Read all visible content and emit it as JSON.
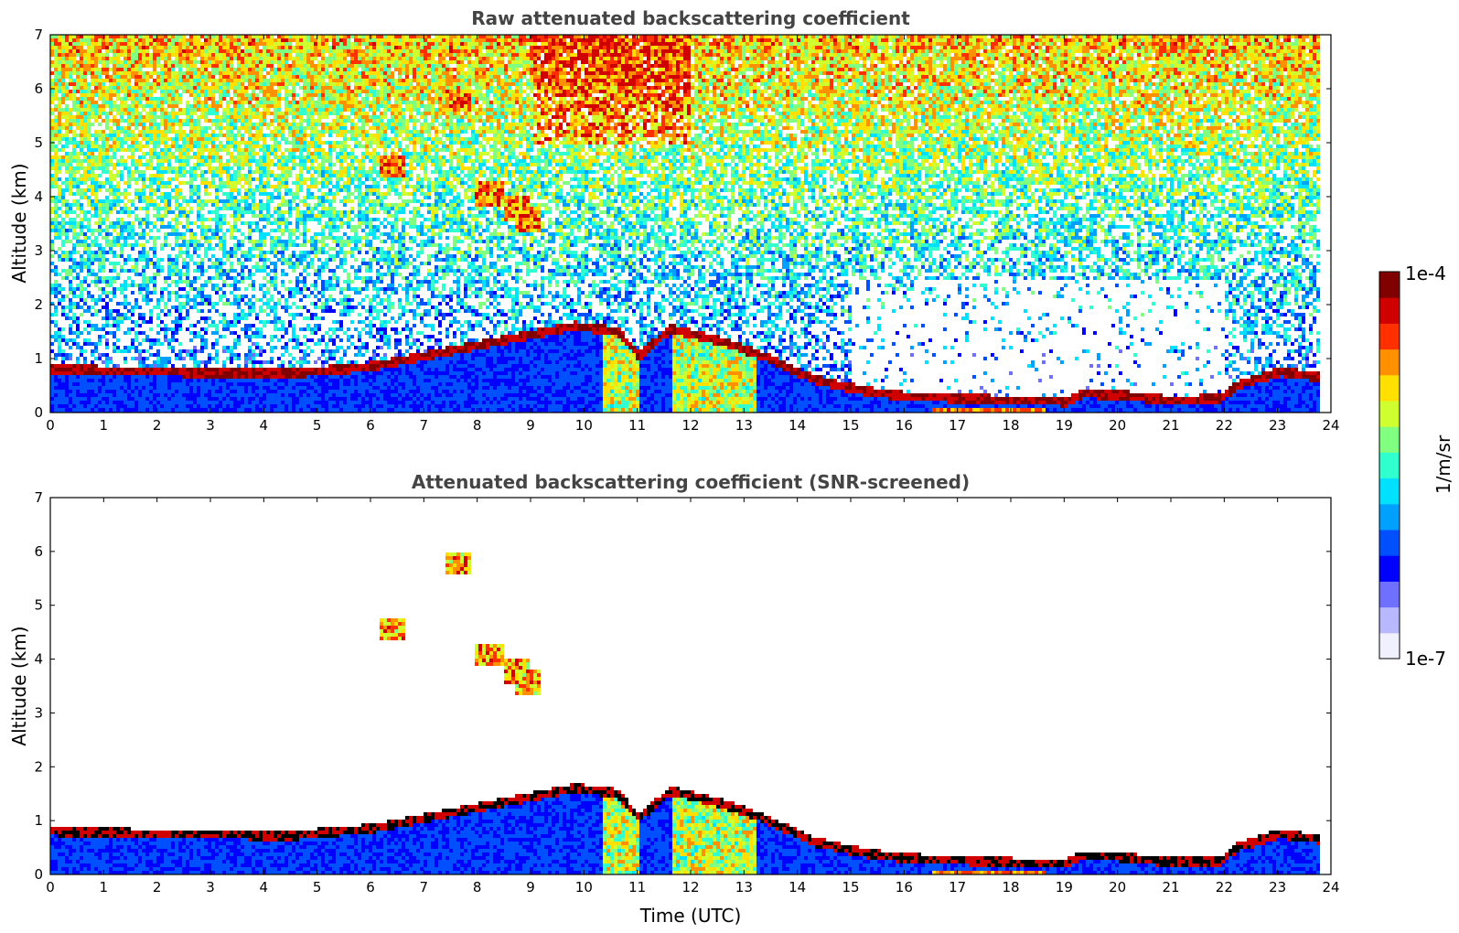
{
  "colormap": [
    "#f0f0ff",
    "#b8b8ff",
    "#7070ff",
    "#0000ff",
    "#0050ff",
    "#00a0ff",
    "#00e0ff",
    "#30ffd0",
    "#80ff80",
    "#d0ff30",
    "#ffe000",
    "#ff9000",
    "#ff3000",
    "#d00000",
    "#800000"
  ],
  "chart_data": [
    {
      "type": "heatmap",
      "title": "Raw attenuated backscattering coefficient",
      "xlabel": "",
      "ylabel": "Altitude (km)",
      "xlim": [
        0,
        24
      ],
      "ylim": [
        0,
        7
      ],
      "xticks": [
        "0",
        "1",
        "2",
        "3",
        "4",
        "5",
        "6",
        "7",
        "8",
        "9",
        "10",
        "11",
        "12",
        "13",
        "14",
        "15",
        "16",
        "17",
        "18",
        "19",
        "20",
        "21",
        "22",
        "23",
        "24"
      ],
      "yticks": [
        "0",
        "1",
        "2",
        "3",
        "4",
        "5",
        "6",
        "7"
      ],
      "cloud_base_km": [
        [
          0,
          0.8
        ],
        [
          2,
          0.75
        ],
        [
          4.5,
          0.72
        ],
        [
          6,
          0.85
        ],
        [
          9.8,
          1.6
        ],
        [
          10.6,
          1.5
        ],
        [
          11.0,
          1.05
        ],
        [
          11.6,
          1.55
        ],
        [
          12.6,
          1.3
        ],
        [
          13.3,
          1.05
        ],
        [
          14.3,
          0.6
        ],
        [
          15.2,
          0.4
        ],
        [
          16,
          0.3
        ],
        [
          18,
          0.22
        ],
        [
          19,
          0.2
        ],
        [
          19.3,
          0.35
        ],
        [
          20,
          0.32
        ],
        [
          21,
          0.22
        ],
        [
          21.9,
          0.25
        ],
        [
          22.2,
          0.5
        ],
        [
          23,
          0.75
        ],
        [
          23.8,
          0.65
        ]
      ],
      "elevated_layers": [
        {
          "t": 8.2,
          "alt": 4.1
        },
        {
          "t": 8.9,
          "alt": 3.6
        },
        {
          "t": 8.7,
          "alt": 3.8
        },
        {
          "t": 7.6,
          "alt": 5.8
        },
        {
          "t": 6.4,
          "alt": 4.6
        }
      ]
    },
    {
      "type": "heatmap",
      "title": "Attenuated backscattering coefficient (SNR-screened)",
      "xlabel": "Time (UTC)",
      "ylabel": "Altitude (km)",
      "xlim": [
        0,
        24
      ],
      "ylim": [
        0,
        7
      ],
      "xticks": [
        "0",
        "1",
        "2",
        "3",
        "4",
        "5",
        "6",
        "7",
        "8",
        "9",
        "10",
        "11",
        "12",
        "13",
        "14",
        "15",
        "16",
        "17",
        "18",
        "19",
        "20",
        "21",
        "22",
        "23",
        "24"
      ],
      "yticks": [
        "0",
        "1",
        "2",
        "3",
        "4",
        "5",
        "6",
        "7"
      ]
    }
  ],
  "colorbar": {
    "label": "1/m/sr",
    "max_label": "1e-4",
    "min_label": "1e-7",
    "range": [
      1e-07,
      0.0001
    ]
  }
}
